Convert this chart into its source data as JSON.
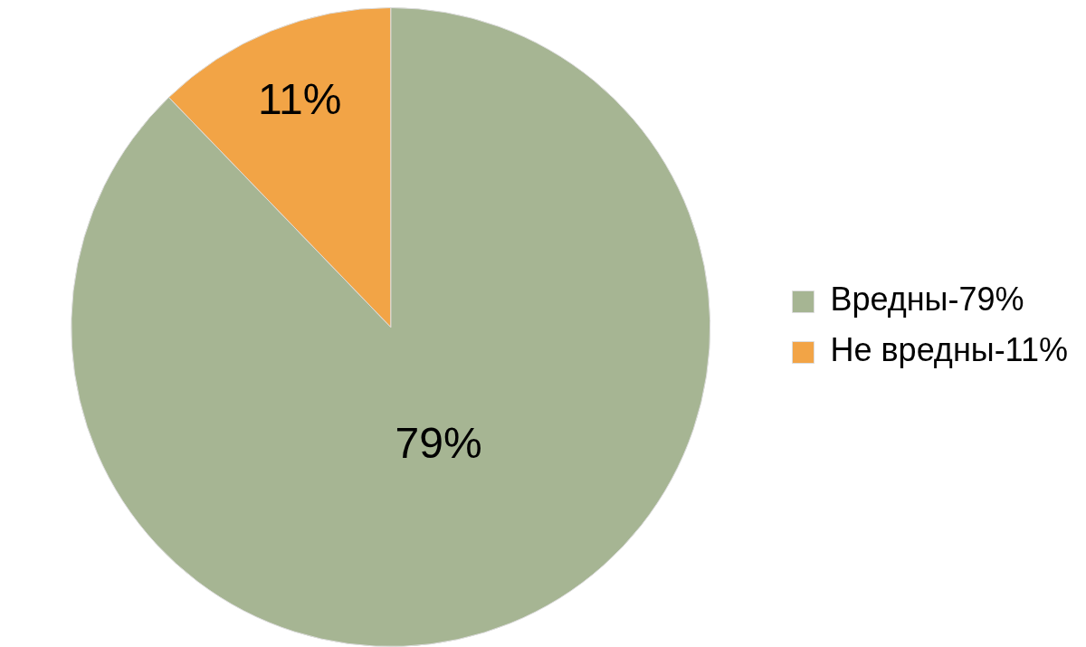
{
  "chart_data": {
    "type": "pie",
    "categories": [
      "Вредны-79%",
      "Не вредны-11%"
    ],
    "values": [
      79,
      11
    ],
    "colors": [
      "#a6b593",
      "#f2a446"
    ],
    "value_labels": [
      "79%",
      "11%"
    ],
    "legend": "right"
  }
}
